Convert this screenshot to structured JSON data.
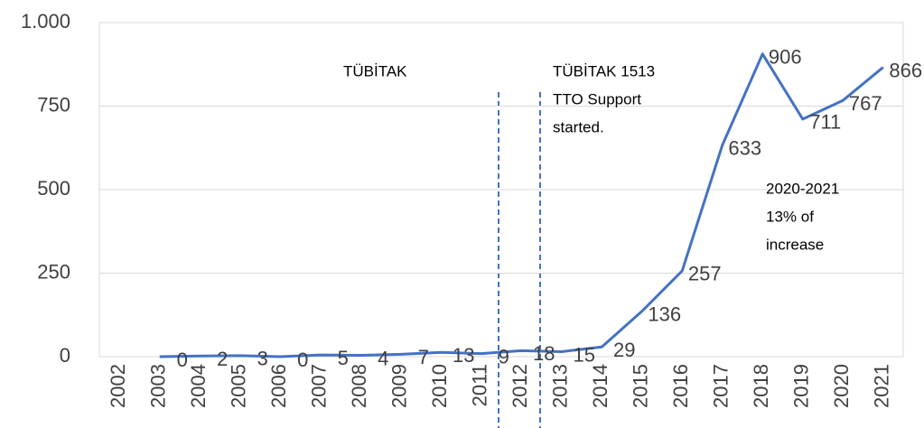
{
  "chart_data": {
    "type": "line",
    "categories": [
      "2002",
      "2003",
      "2004",
      "2005",
      "2006",
      "2007",
      "2008",
      "2009",
      "2010",
      "2011",
      "2012",
      "2013",
      "2014",
      "2015",
      "2016",
      "2017",
      "2018",
      "2019",
      "2020",
      "2021"
    ],
    "series": [
      {
        "name": null,
        "color": "#4472c4",
        "values": [
          null,
          0,
          2,
          3,
          0,
          5,
          4,
          7,
          13,
          9,
          18,
          15,
          29,
          136,
          257,
          633,
          906,
          711,
          767,
          866
        ]
      }
    ],
    "ylim": [
      0,
      1000
    ],
    "yticks": [
      0,
      250,
      500,
      750,
      {
        "value": 1000,
        "label": "1.000"
      }
    ],
    "grid": true,
    "annotations": [
      {
        "lines": [
          "TÜBİTAK"
        ]
      },
      {
        "lines": [
          "TÜBİTAK 1513",
          "TTO Support",
          "started."
        ]
      },
      {
        "lines": [
          "2020-2021",
          "13% of",
          "increase"
        ]
      }
    ]
  }
}
